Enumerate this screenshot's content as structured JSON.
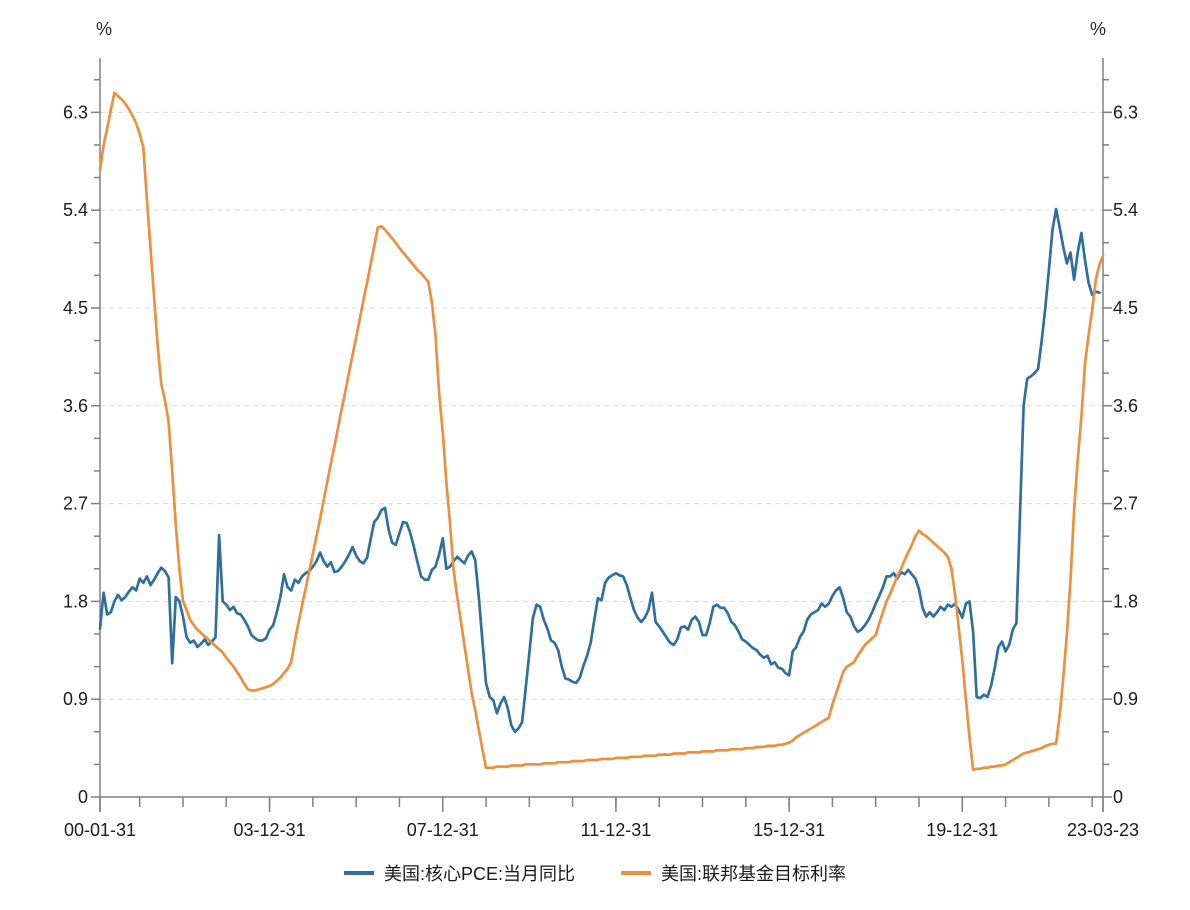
{
  "chart_data": {
    "type": "line",
    "title": "",
    "unit_label_left": "%",
    "unit_label_right": "%",
    "grid": "horizontal-dashed",
    "legend_position": "bottom-center",
    "x_start_month": "2000-01",
    "x_end_month": "2023-03",
    "months_total": 278,
    "x_ticks": [
      {
        "label": "00-01-31",
        "month": 0
      },
      {
        "label": "03-12-31",
        "month": 47
      },
      {
        "label": "07-12-31",
        "month": 95
      },
      {
        "label": "11-12-31",
        "month": 143
      },
      {
        "label": "15-12-31",
        "month": 191
      },
      {
        "label": "19-12-31",
        "month": 239
      },
      {
        "label": "23-03-23",
        "month": 278
      }
    ],
    "y_tick_values": [
      0,
      0.9,
      1.8,
      2.7,
      3.6,
      4.5,
      5.4,
      6.3
    ],
    "y_tick_labels": [
      "0",
      "0.9",
      "1.8",
      "2.7",
      "3.6",
      "4.5",
      "5.4",
      "6.3"
    ],
    "y_minor_step": 0.3,
    "ylim": [
      0,
      6.8
    ],
    "axis_color": "#808080",
    "gridline_color": "#d9d9d9",
    "label_color": "#1c1c1c",
    "series": [
      {
        "key": "core-pce",
        "name": "美国:核心PCE:当月同比",
        "color": "#2F6F9D",
        "start_month": "2000-01",
        "values": [
          1.55,
          1.88,
          1.68,
          1.7,
          1.8,
          1.86,
          1.81,
          1.84,
          1.89,
          1.93,
          1.9,
          2.01,
          1.97,
          2.03,
          1.95,
          2.0,
          2.06,
          2.11,
          2.08,
          2.02,
          1.23,
          1.84,
          1.8,
          1.66,
          1.47,
          1.42,
          1.44,
          1.38,
          1.41,
          1.45,
          1.4,
          1.43,
          1.47,
          2.41,
          1.8,
          1.77,
          1.72,
          1.75,
          1.69,
          1.68,
          1.63,
          1.57,
          1.49,
          1.46,
          1.44,
          1.44,
          1.46,
          1.54,
          1.58,
          1.7,
          1.84,
          2.05,
          1.93,
          1.9,
          2.0,
          1.97,
          2.03,
          2.06,
          2.08,
          2.12,
          2.17,
          2.25,
          2.17,
          2.12,
          2.16,
          2.07,
          2.08,
          2.12,
          2.17,
          2.23,
          2.3,
          2.22,
          2.17,
          2.15,
          2.2,
          2.37,
          2.53,
          2.57,
          2.64,
          2.66,
          2.46,
          2.34,
          2.32,
          2.43,
          2.53,
          2.52,
          2.43,
          2.3,
          2.16,
          2.03,
          2.0,
          2.0,
          2.09,
          2.12,
          2.23,
          2.38,
          2.1,
          2.12,
          2.17,
          2.21,
          2.18,
          2.15,
          2.22,
          2.26,
          2.18,
          1.84,
          1.44,
          1.05,
          0.92,
          0.89,
          0.77,
          0.86,
          0.92,
          0.82,
          0.66,
          0.6,
          0.63,
          0.69,
          1.0,
          1.32,
          1.65,
          1.77,
          1.75,
          1.63,
          1.55,
          1.44,
          1.42,
          1.35,
          1.2,
          1.09,
          1.08,
          1.06,
          1.05,
          1.1,
          1.21,
          1.3,
          1.42,
          1.63,
          1.83,
          1.81,
          1.97,
          2.02,
          2.04,
          2.06,
          2.04,
          2.03,
          1.95,
          1.83,
          1.72,
          1.65,
          1.61,
          1.65,
          1.72,
          1.88,
          1.61,
          1.57,
          1.52,
          1.47,
          1.42,
          1.4,
          1.45,
          1.56,
          1.57,
          1.54,
          1.63,
          1.66,
          1.61,
          1.49,
          1.49,
          1.6,
          1.75,
          1.77,
          1.74,
          1.74,
          1.69,
          1.61,
          1.58,
          1.52,
          1.45,
          1.43,
          1.4,
          1.37,
          1.35,
          1.31,
          1.28,
          1.3,
          1.22,
          1.24,
          1.19,
          1.18,
          1.14,
          1.12,
          1.34,
          1.38,
          1.47,
          1.52,
          1.63,
          1.68,
          1.7,
          1.72,
          1.78,
          1.75,
          1.78,
          1.85,
          1.9,
          1.93,
          1.83,
          1.7,
          1.66,
          1.57,
          1.52,
          1.54,
          1.58,
          1.63,
          1.7,
          1.78,
          1.85,
          1.93,
          2.03,
          2.03,
          2.06,
          2.01,
          2.07,
          2.05,
          2.09,
          2.05,
          2.01,
          1.91,
          1.74,
          1.66,
          1.7,
          1.66,
          1.7,
          1.75,
          1.72,
          1.77,
          1.75,
          1.78,
          1.72,
          1.65,
          1.78,
          1.8,
          1.52,
          0.92,
          0.91,
          0.94,
          0.92,
          1.03,
          1.19,
          1.38,
          1.43,
          1.34,
          1.4,
          1.54,
          1.6,
          2.6,
          3.6,
          3.85,
          3.87,
          3.9,
          3.94,
          4.2,
          4.5,
          4.85,
          5.22,
          5.41,
          5.24,
          5.06,
          4.91,
          5.01,
          4.76,
          5.01,
          5.19,
          4.94,
          4.73,
          4.62,
          4.65,
          4.64
        ]
      },
      {
        "key": "fed-funds",
        "name": "美国:联邦基金目标利率",
        "color": "#ED8F3C",
        "start_month": "2000-01",
        "values": [
          5.77,
          6.0,
          6.15,
          6.32,
          6.48,
          6.45,
          6.42,
          6.38,
          6.33,
          6.27,
          6.2,
          6.1,
          5.98,
          5.5,
          5.05,
          4.6,
          4.15,
          3.8,
          3.65,
          3.45,
          3.0,
          2.5,
          2.1,
          1.8,
          1.72,
          1.63,
          1.58,
          1.54,
          1.51,
          1.48,
          1.45,
          1.42,
          1.39,
          1.36,
          1.33,
          1.28,
          1.24,
          1.2,
          1.15,
          1.1,
          1.04,
          0.99,
          0.98,
          0.98,
          0.99,
          1.0,
          1.01,
          1.02,
          1.04,
          1.07,
          1.1,
          1.14,
          1.18,
          1.24,
          1.43,
          1.6,
          1.76,
          1.92,
          2.08,
          2.24,
          2.4,
          2.56,
          2.73,
          2.9,
          3.07,
          3.23,
          3.4,
          3.57,
          3.73,
          3.9,
          4.07,
          4.23,
          4.4,
          4.57,
          4.73,
          4.9,
          5.07,
          5.24,
          5.25,
          5.22,
          5.18,
          5.14,
          5.1,
          5.05,
          5.01,
          4.97,
          4.93,
          4.89,
          4.85,
          4.82,
          4.78,
          4.74,
          4.55,
          4.25,
          3.72,
          3.35,
          2.89,
          2.52,
          2.09,
          1.84,
          1.62,
          1.4,
          1.18,
          0.96,
          0.8,
          0.62,
          0.44,
          0.27,
          0.27,
          0.27,
          0.28,
          0.28,
          0.28,
          0.28,
          0.29,
          0.29,
          0.29,
          0.29,
          0.3,
          0.3,
          0.3,
          0.3,
          0.3,
          0.31,
          0.31,
          0.31,
          0.31,
          0.32,
          0.32,
          0.32,
          0.32,
          0.33,
          0.33,
          0.33,
          0.33,
          0.34,
          0.34,
          0.34,
          0.34,
          0.35,
          0.35,
          0.35,
          0.35,
          0.36,
          0.36,
          0.36,
          0.36,
          0.37,
          0.37,
          0.37,
          0.37,
          0.38,
          0.38,
          0.38,
          0.38,
          0.39,
          0.39,
          0.39,
          0.39,
          0.4,
          0.4,
          0.4,
          0.4,
          0.41,
          0.41,
          0.41,
          0.41,
          0.42,
          0.42,
          0.42,
          0.42,
          0.43,
          0.43,
          0.43,
          0.43,
          0.44,
          0.44,
          0.44,
          0.44,
          0.45,
          0.45,
          0.45,
          0.46,
          0.46,
          0.46,
          0.47,
          0.47,
          0.47,
          0.48,
          0.48,
          0.49,
          0.5,
          0.52,
          0.55,
          0.57,
          0.59,
          0.61,
          0.63,
          0.65,
          0.67,
          0.69,
          0.71,
          0.73,
          0.85,
          0.95,
          1.05,
          1.15,
          1.2,
          1.22,
          1.24,
          1.3,
          1.35,
          1.4,
          1.43,
          1.46,
          1.49,
          1.6,
          1.7,
          1.8,
          1.87,
          1.95,
          2.03,
          2.1,
          2.18,
          2.25,
          2.32,
          2.4,
          2.45,
          2.42,
          2.4,
          2.37,
          2.34,
          2.31,
          2.28,
          2.25,
          2.21,
          2.1,
          1.86,
          1.56,
          1.26,
          0.9,
          0.55,
          0.25,
          0.26,
          0.26,
          0.27,
          0.27,
          0.28,
          0.28,
          0.29,
          0.29,
          0.3,
          0.32,
          0.34,
          0.36,
          0.38,
          0.4,
          0.41,
          0.42,
          0.43,
          0.44,
          0.45,
          0.47,
          0.48,
          0.49,
          0.49,
          0.75,
          1.1,
          1.5,
          2.0,
          2.64,
          3.1,
          3.5,
          3.99,
          4.25,
          4.48,
          4.76,
          4.9,
          4.98
        ]
      }
    ]
  }
}
